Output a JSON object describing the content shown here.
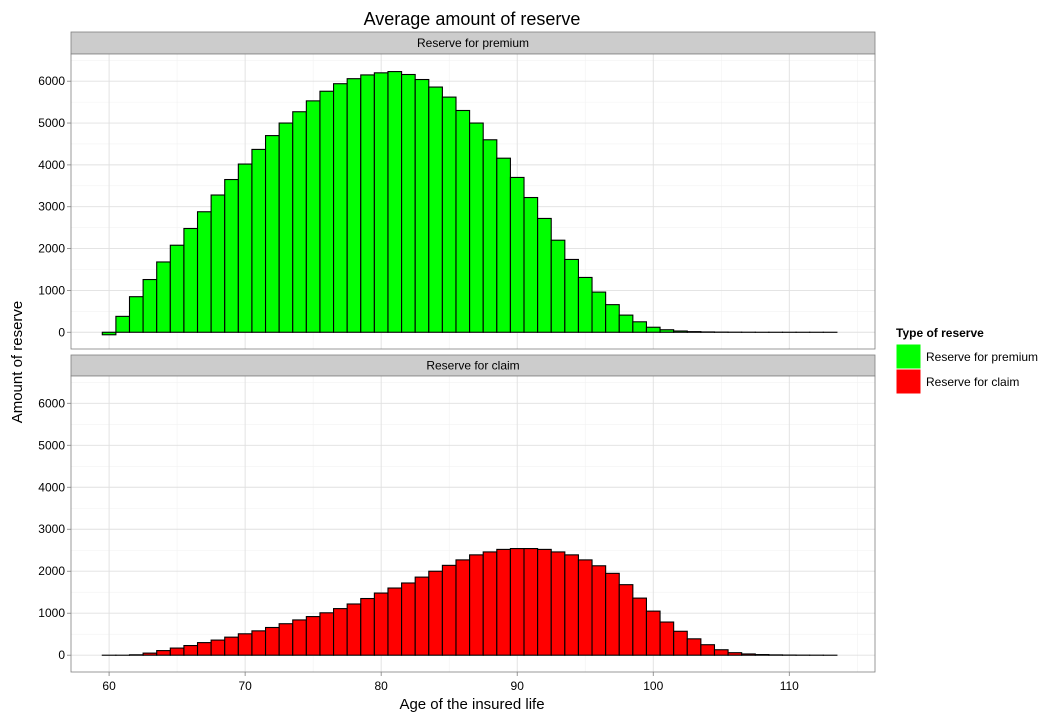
{
  "chart_data": {
    "type": "bar",
    "title": "Average amount of reserve",
    "xlabel": "Age of the insured life",
    "ylabel": "Amount of reserve",
    "xlim": [
      57.2,
      116.3
    ],
    "ylim": [
      -400,
      6650
    ],
    "x_ticks": [
      60,
      70,
      80,
      90,
      100,
      110
    ],
    "y_ticks": [
      0,
      1000,
      2000,
      3000,
      4000,
      5000,
      6000
    ],
    "grid": true,
    "legend_title": "Type of reserve",
    "legend_position": "right",
    "series": [
      {
        "name": "Reserve for premium",
        "strip": "Reserve for premium",
        "color": "#00ff00",
        "x": [
          60,
          61,
          62,
          63,
          64,
          65,
          66,
          67,
          68,
          69,
          70,
          71,
          72,
          73,
          74,
          75,
          76,
          77,
          78,
          79,
          80,
          81,
          82,
          83,
          84,
          85,
          86,
          87,
          88,
          89,
          90,
          91,
          92,
          93,
          94,
          95,
          96,
          97,
          98,
          99,
          100,
          101,
          102,
          103,
          104,
          105,
          106,
          107,
          108,
          109,
          110,
          111,
          112,
          113
        ],
        "values": [
          -60,
          380,
          850,
          1260,
          1680,
          2080,
          2480,
          2880,
          3280,
          3650,
          4020,
          4370,
          4700,
          5000,
          5270,
          5530,
          5760,
          5940,
          6060,
          6150,
          6200,
          6230,
          6160,
          6040,
          5860,
          5620,
          5300,
          5000,
          4600,
          4160,
          3700,
          3220,
          2720,
          2200,
          1740,
          1310,
          960,
          660,
          410,
          250,
          120,
          60,
          30,
          15,
          8,
          4,
          2,
          1,
          0,
          0,
          0,
          0,
          0,
          0
        ]
      },
      {
        "name": "Reserve for claim",
        "strip": "Reserve for claim",
        "color": "#ff0000",
        "x": [
          60,
          61,
          62,
          63,
          64,
          65,
          66,
          67,
          68,
          69,
          70,
          71,
          72,
          73,
          74,
          75,
          76,
          77,
          78,
          79,
          80,
          81,
          82,
          83,
          84,
          85,
          86,
          87,
          88,
          89,
          90,
          91,
          92,
          93,
          94,
          95,
          96,
          97,
          98,
          99,
          100,
          101,
          102,
          103,
          104,
          105,
          106,
          107,
          108,
          109,
          110,
          111,
          112,
          113
        ],
        "values": [
          0,
          0,
          10,
          50,
          110,
          170,
          230,
          300,
          360,
          430,
          510,
          580,
          660,
          750,
          840,
          920,
          1010,
          1110,
          1220,
          1350,
          1480,
          1600,
          1720,
          1860,
          2000,
          2140,
          2270,
          2390,
          2460,
          2520,
          2540,
          2540,
          2520,
          2460,
          2390,
          2270,
          2130,
          1950,
          1680,
          1360,
          1050,
          790,
          570,
          390,
          250,
          130,
          60,
          30,
          15,
          8,
          4,
          2,
          1,
          0
        ]
      }
    ]
  }
}
